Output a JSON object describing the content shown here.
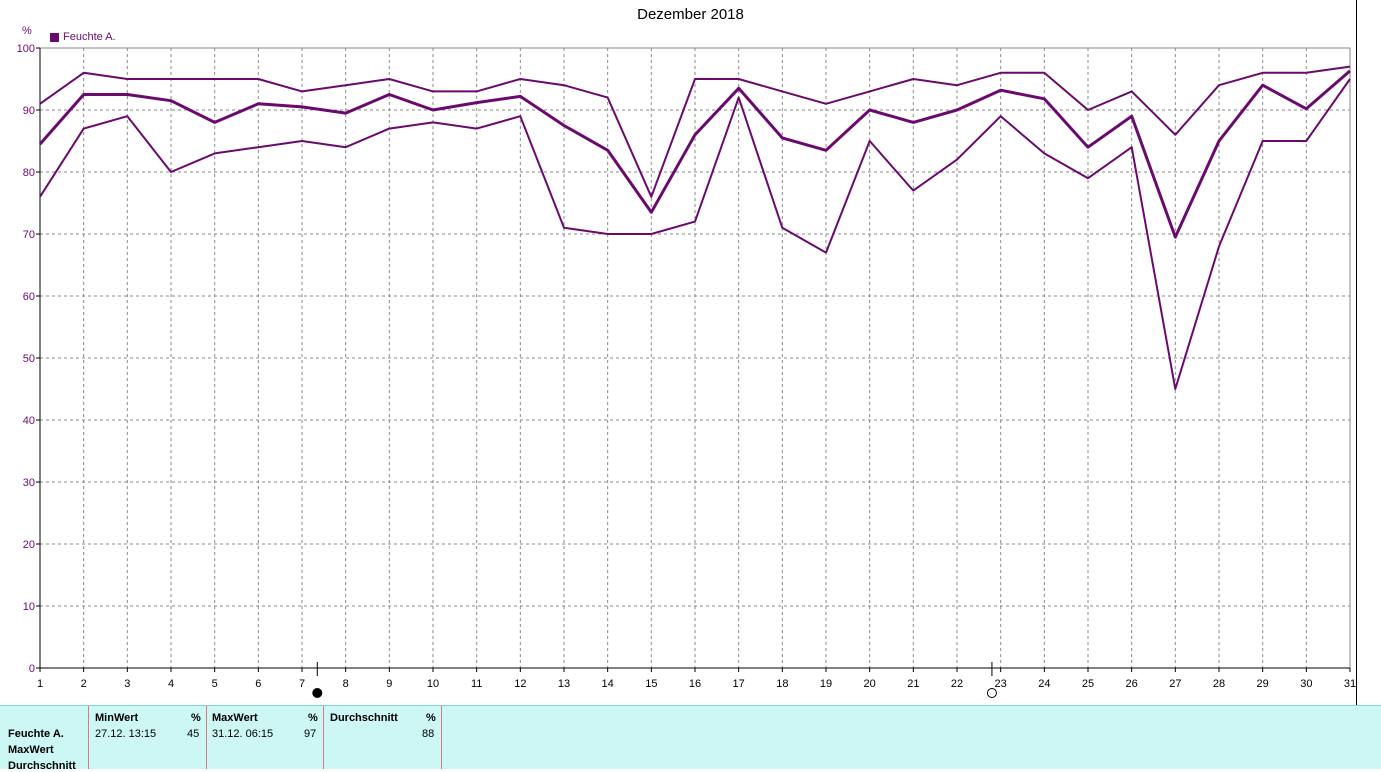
{
  "chart_data": {
    "type": "line",
    "title": "Dezember 2018",
    "ylabel": "%",
    "ylim": [
      0,
      100
    ],
    "yticks": [
      0,
      10,
      20,
      30,
      40,
      50,
      60,
      70,
      80,
      90,
      100
    ],
    "x": [
      1,
      2,
      3,
      4,
      5,
      6,
      7,
      8,
      9,
      10,
      11,
      12,
      13,
      14,
      15,
      16,
      17,
      18,
      19,
      20,
      21,
      22,
      23,
      24,
      25,
      26,
      27,
      28,
      29,
      30,
      31
    ],
    "legend": [
      "Feuchte A."
    ],
    "legend_position": "top-left",
    "grid": true,
    "color": "#6a0a6f",
    "series": [
      {
        "role": "max",
        "values": [
          91,
          96,
          95,
          95,
          95,
          95,
          93,
          94,
          95,
          93,
          93,
          95,
          94,
          92,
          76,
          95,
          95,
          93,
          91,
          93,
          95,
          94,
          96,
          96,
          90,
          93,
          86,
          94,
          96,
          96,
          97
        ]
      },
      {
        "role": "avg",
        "values": [
          84.5,
          92.5,
          92.5,
          91.5,
          88,
          91,
          90.5,
          89.5,
          92.5,
          90,
          91.2,
          92.2,
          87.5,
          83.5,
          73.5,
          86,
          93.5,
          85.5,
          83.5,
          90,
          88,
          90,
          93.2,
          91.8,
          84,
          89,
          69.5,
          85,
          94,
          90.2,
          96.3
        ]
      },
      {
        "role": "min",
        "values": [
          76,
          87,
          89,
          80,
          83,
          84,
          85,
          84,
          87,
          88,
          87,
          89,
          71,
          70,
          70,
          72,
          92,
          71,
          67,
          85,
          77,
          82,
          89,
          83,
          79,
          84,
          45,
          68,
          85,
          85,
          95
        ]
      }
    ],
    "moon_markers": [
      {
        "phase": "full",
        "x": 7.35
      },
      {
        "phase": "new",
        "x": 22.8
      }
    ]
  },
  "stats": {
    "row_labels": [
      "Feuchte A.",
      "MaxWert",
      "Durchschnitt"
    ],
    "columns": [
      {
        "header": "MinWert",
        "unit": "%",
        "time": "27.12.  13:15",
        "value": "45"
      },
      {
        "header": "MaxWert",
        "unit": "%",
        "time": "31.12.  06:15",
        "value": "97"
      },
      {
        "header": "Durchschnitt",
        "unit": "%",
        "time": "",
        "value": "88"
      }
    ]
  }
}
